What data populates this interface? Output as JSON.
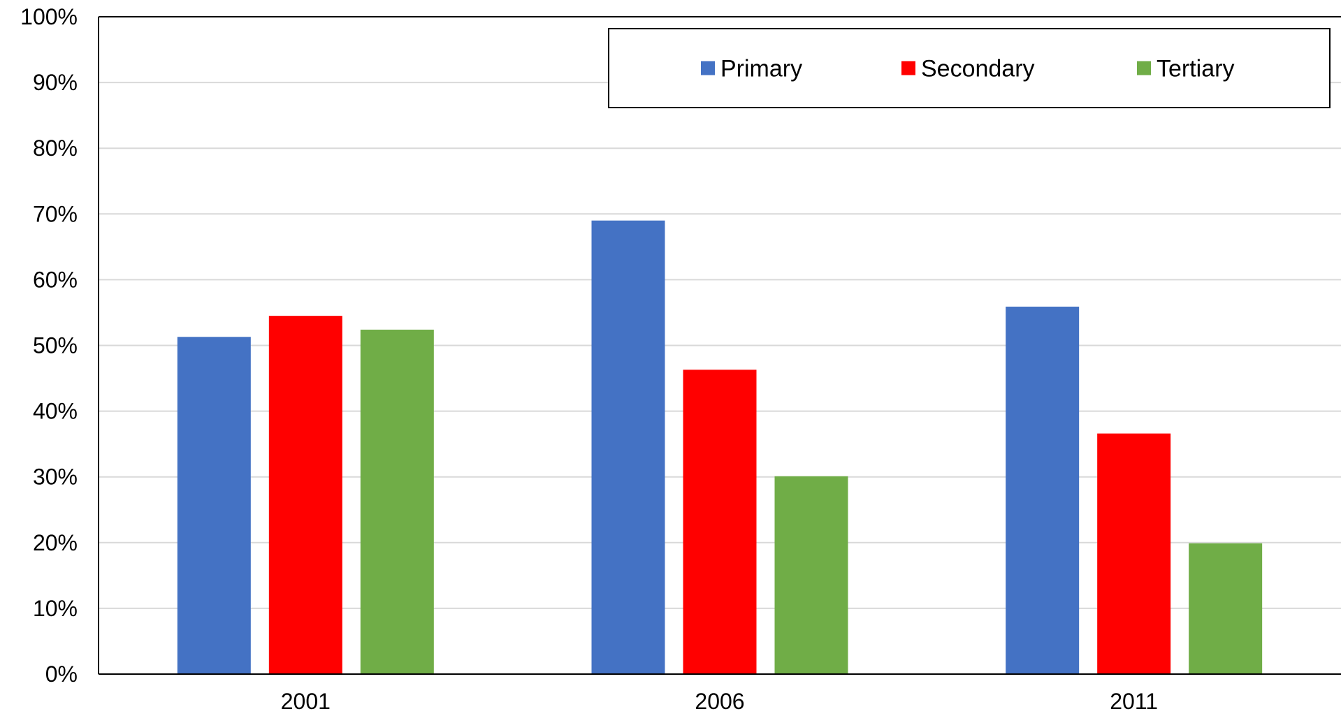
{
  "chart_data": {
    "type": "bar",
    "title": "",
    "xlabel": "",
    "ylabel": "",
    "categories": [
      "2001",
      "2006",
      "2011"
    ],
    "series": [
      {
        "name": "Primary",
        "color": "#4472C4",
        "values": [
          51.3,
          69.0,
          55.9
        ]
      },
      {
        "name": "Secondary",
        "color": "#FF0000",
        "values": [
          54.5,
          46.3,
          36.6
        ]
      },
      {
        "name": "Tertiary",
        "color": "#70AD47",
        "values": [
          52.4,
          30.1,
          19.9
        ]
      }
    ],
    "ylim": [
      0,
      100
    ],
    "yticks": [
      {
        "value": 0,
        "label": "0%"
      },
      {
        "value": 10,
        "label": "10%"
      },
      {
        "value": 20,
        "label": "20%"
      },
      {
        "value": 30,
        "label": "30%"
      },
      {
        "value": 40,
        "label": "40%"
      },
      {
        "value": 50,
        "label": "50%"
      },
      {
        "value": 60,
        "label": "60%"
      },
      {
        "value": 70,
        "label": "70%"
      },
      {
        "value": 80,
        "label": "80%"
      },
      {
        "value": 90,
        "label": "90%"
      },
      {
        "value": 100,
        "label": "100%"
      }
    ],
    "grid": true,
    "gridline_color": "#D9D9D9",
    "legend_position": "top-right"
  }
}
